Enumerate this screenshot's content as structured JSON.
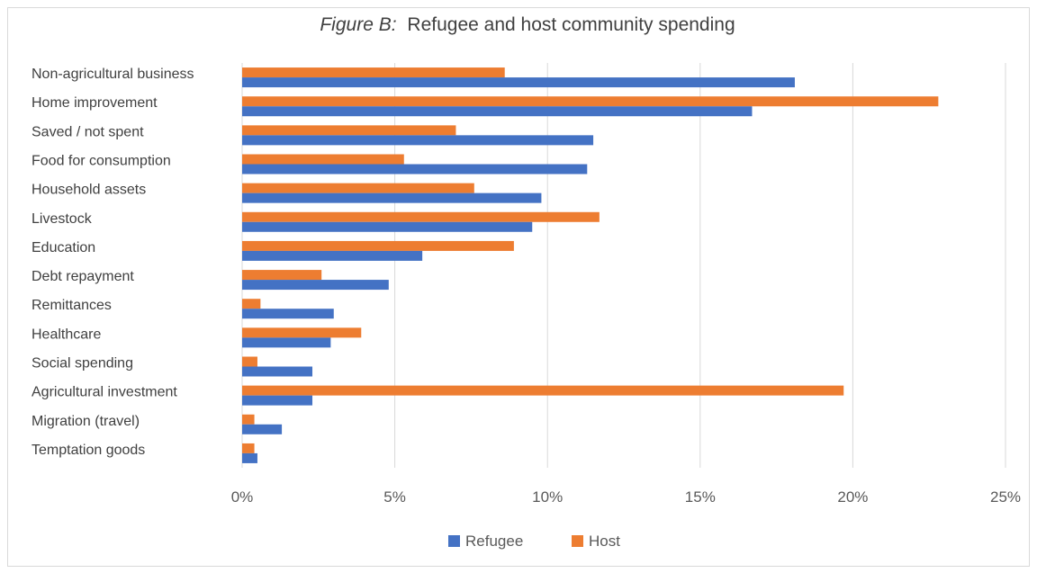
{
  "chart_data": {
    "type": "bar",
    "orientation": "horizontal",
    "title_prefix": "Figure B:",
    "title": "Refugee and host community spending",
    "categories": [
      "Non-agricultural business",
      "Home improvement",
      "Saved / not spent",
      "Food for consumption",
      "Household assets",
      "Livestock",
      "Education",
      "Debt repayment",
      "Remittances",
      "Healthcare",
      "Social spending",
      "Agricultural investment",
      "Migration (travel)",
      "Temptation goods"
    ],
    "series": [
      {
        "name": "Host",
        "color": "#ed7d31",
        "values": [
          8.6,
          22.8,
          7.0,
          5.3,
          7.6,
          11.7,
          8.9,
          2.6,
          0.6,
          3.9,
          0.5,
          19.7,
          0.4,
          0.4
        ]
      },
      {
        "name": "Refugee",
        "color": "#4472c4",
        "values": [
          18.1,
          16.7,
          11.5,
          11.3,
          9.8,
          9.5,
          5.9,
          4.8,
          3.0,
          2.9,
          2.3,
          2.3,
          1.3,
          0.5
        ]
      }
    ],
    "xlim": [
      0,
      25
    ],
    "ticks": [
      0,
      5,
      10,
      15,
      20,
      25
    ],
    "tick_labels": [
      "0%",
      "5%",
      "10%",
      "15%",
      "20%",
      "25%"
    ],
    "grid": true,
    "legend": {
      "position": "bottom",
      "entries": [
        {
          "name": "Refugee",
          "color": "#4472c4"
        },
        {
          "name": "Host",
          "color": "#ed7d31"
        }
      ]
    }
  }
}
